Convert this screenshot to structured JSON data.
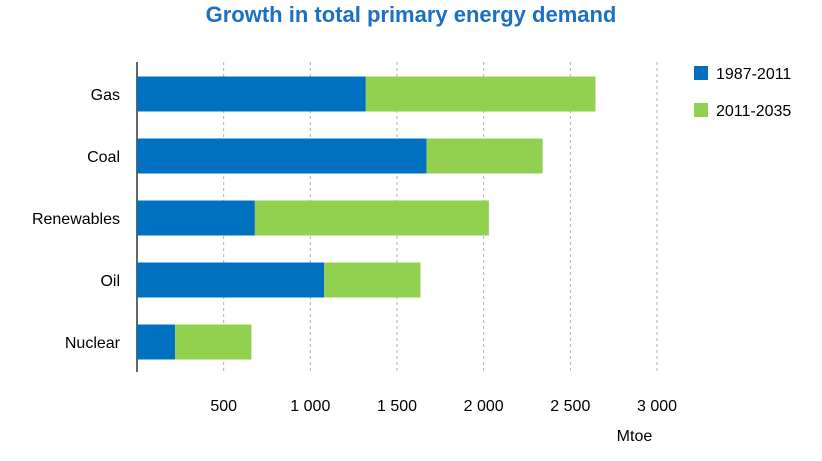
{
  "chart_data": {
    "type": "bar",
    "orientation": "horizontal",
    "stacked": true,
    "title": "Growth in total primary energy demand",
    "xlabel": "Mtoe",
    "ylabel": "",
    "categories": [
      "Gas",
      "Coal",
      "Renewables",
      "Oil",
      "Nuclear"
    ],
    "series": [
      {
        "name": "1987-2011",
        "color": "#0070c0",
        "values": [
          1320,
          1670,
          680,
          1080,
          220
        ]
      },
      {
        "name": "2011-2035",
        "color": "#92d050",
        "values": [
          1325,
          670,
          1350,
          555,
          440
        ]
      }
    ],
    "xlim": [
      0,
      3000
    ],
    "xticks": [
      500,
      1000,
      1500,
      2000,
      2500,
      3000
    ],
    "xtick_labels": [
      "500",
      "1 000",
      "1 500",
      "2 000",
      "2 500",
      "3 000"
    ],
    "grid": "vertical dashed",
    "legend": "top-right"
  }
}
